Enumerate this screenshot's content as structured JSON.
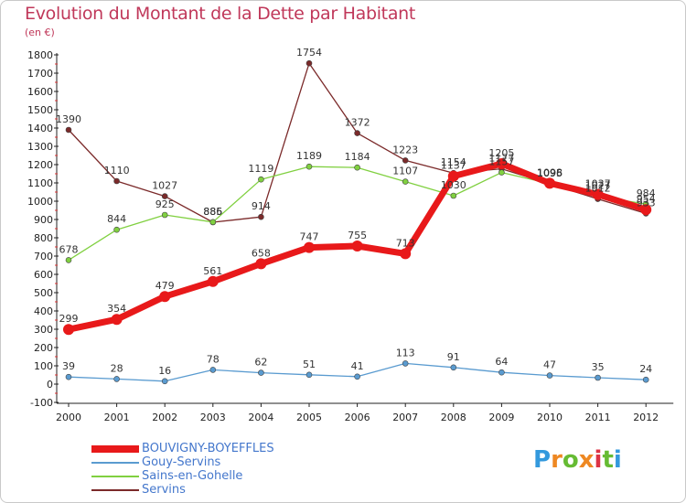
{
  "chart_data": {
    "type": "line",
    "title": "Evolution du Montant de la Dette par Habitant",
    "subtitle": "(en €)",
    "xlabel": "",
    "ylabel": "",
    "categories": [
      "2000",
      "2001",
      "2002",
      "2003",
      "2004",
      "2005",
      "2006",
      "2007",
      "2008",
      "2009",
      "2010",
      "2011",
      "2012"
    ],
    "ylim": [
      -100,
      1800
    ],
    "yticks": [
      -100,
      0,
      100,
      200,
      300,
      400,
      500,
      600,
      700,
      800,
      900,
      1000,
      1100,
      1200,
      1300,
      1400,
      1500,
      1600,
      1700,
      1800
    ],
    "grid": false,
    "legend_position": "bottom-left",
    "series": [
      {
        "name": "Servins",
        "color": "#7b2a2a",
        "values": [
          1390,
          1110,
          1027,
          885,
          914,
          1754,
          1372,
          1223,
          1154,
          1177,
          1095,
          1012,
          933
        ]
      },
      {
        "name": "Sains-en-Gohelle",
        "color": "#80d040",
        "values": [
          678,
          844,
          925,
          886,
          1119,
          1189,
          1184,
          1107,
          1030,
          1157,
          1096,
          1027,
          984
        ]
      },
      {
        "name": "Gouy-Servins",
        "color": "#5a9bd0",
        "values": [
          39,
          28,
          16,
          78,
          62,
          51,
          41,
          113,
          91,
          64,
          47,
          35,
          24
        ]
      },
      {
        "name": "BOUVIGNY-BOYEFFLES",
        "color": "#e8191a",
        "values": [
          299,
          354,
          479,
          561,
          658,
          747,
          755,
          713,
          1137,
          1205,
          1098,
          1037,
          954
        ]
      }
    ],
    "legend_order": [
      "BOUVIGNY-BOYEFFLES",
      "Gouy-Servins",
      "Sains-en-Gohelle",
      "Servins"
    ]
  },
  "brand": {
    "letters": [
      "P",
      "r",
      "o",
      "x",
      "i",
      "t",
      "i"
    ],
    "colors": [
      "#3399dd",
      "#ee8822",
      "#66bb33",
      "#ee8822",
      "#dd3344",
      "#66bb33",
      "#3399dd"
    ]
  }
}
